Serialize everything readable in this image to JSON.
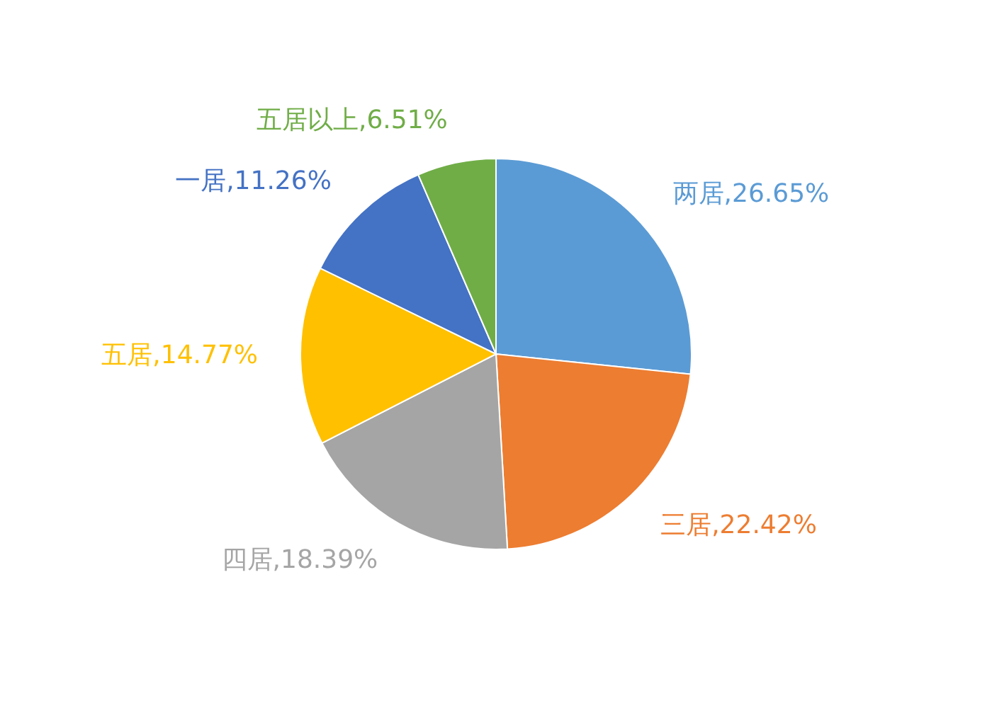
{
  "chart_data": {
    "type": "pie",
    "categories": [
      "两居",
      "三居",
      "四居",
      "五居",
      "一居",
      "五居以上"
    ],
    "values": [
      26.65,
      22.42,
      18.39,
      14.77,
      11.26,
      6.51
    ],
    "colors": [
      "#5b9bd5",
      "#ed7d31",
      "#a5a5a5",
      "#ffc000",
      "#4472c4",
      "#70ad47"
    ],
    "value_labels": [
      "26.65%",
      "22.42%",
      "18.39%",
      "14.77%",
      "11.26%",
      "6.51%"
    ]
  }
}
